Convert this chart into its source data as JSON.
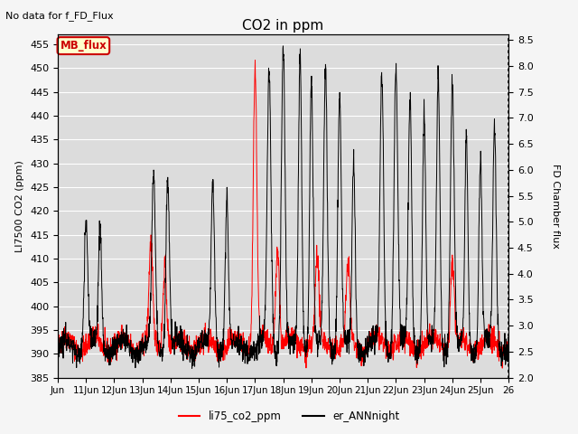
{
  "title": "CO2 in ppm",
  "top_left_text": "No data for f_FD_Flux",
  "ylabel_left": "LI7500 CO2 (ppm)",
  "ylabel_right": "FD Chamber flux",
  "ylim_left": [
    385,
    457
  ],
  "ylim_right": [
    2.0,
    8.6
  ],
  "yticks_left": [
    385,
    390,
    395,
    400,
    405,
    410,
    415,
    420,
    425,
    430,
    435,
    440,
    445,
    450,
    455
  ],
  "yticks_right": [
    2.0,
    2.5,
    3.0,
    3.5,
    4.0,
    4.5,
    5.0,
    5.5,
    6.0,
    6.5,
    7.0,
    7.5,
    8.0,
    8.5
  ],
  "xtick_labels": [
    "Jun",
    "11Jun",
    "12Jun",
    "13Jun",
    "14Jun",
    "15Jun",
    "16Jun",
    "17Jun",
    "18Jun",
    "19Jun",
    "20Jun",
    "21Jun",
    "22Jun",
    "23Jun",
    "24Jun",
    "25Jun",
    "26"
  ],
  "legend_entries": [
    "li75_co2_ppm",
    "er_ANNnight"
  ],
  "line_red_color": "#ff0000",
  "line_black_color": "#000000",
  "plot_bg_color": "#dcdcdc",
  "fig_bg_color": "#f5f5f5",
  "mb_flux_label": "MB_flux",
  "mb_flux_bg": "#ffffcc",
  "mb_flux_border": "#cc0000",
  "mb_flux_text_color": "#cc0000"
}
